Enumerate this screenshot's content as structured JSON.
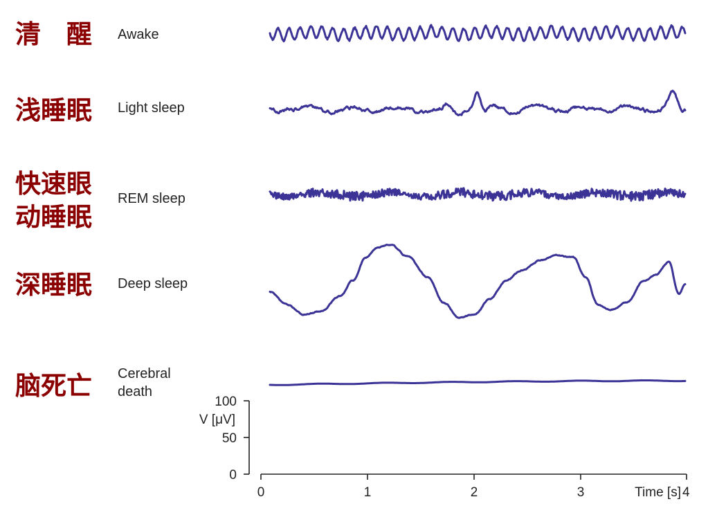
{
  "colors": {
    "chinese_label": "#8b0000",
    "wave": "#3c3396",
    "axis": "#222222"
  },
  "rows": [
    {
      "id": "awake",
      "zh_lines": [
        "清　醒"
      ],
      "en_lines": [
        "Awake"
      ],
      "pattern": "awake"
    },
    {
      "id": "light",
      "zh_lines": [
        "浅睡眠"
      ],
      "en_lines": [
        "Light sleep"
      ],
      "pattern": "light"
    },
    {
      "id": "rem",
      "zh_lines": [
        "快速眼",
        "动睡眠"
      ],
      "en_lines": [
        "REM sleep"
      ],
      "pattern": "rem"
    },
    {
      "id": "deep",
      "zh_lines": [
        "深睡眠"
      ],
      "en_lines": [
        "Deep sleep"
      ],
      "pattern": "deep"
    },
    {
      "id": "death",
      "zh_lines": [
        "脑死亡"
      ],
      "en_lines": [
        "Cerebral",
        "death"
      ],
      "pattern": "death"
    }
  ],
  "voltage_axis": {
    "label": "V [μV]",
    "ticks": [
      "100",
      "50",
      "0"
    ],
    "range": [
      0,
      100
    ]
  },
  "time_axis": {
    "ticks": [
      "0",
      "1",
      "2",
      "3",
      "4"
    ],
    "label": "Time [s]",
    "range": [
      0,
      4
    ]
  }
}
